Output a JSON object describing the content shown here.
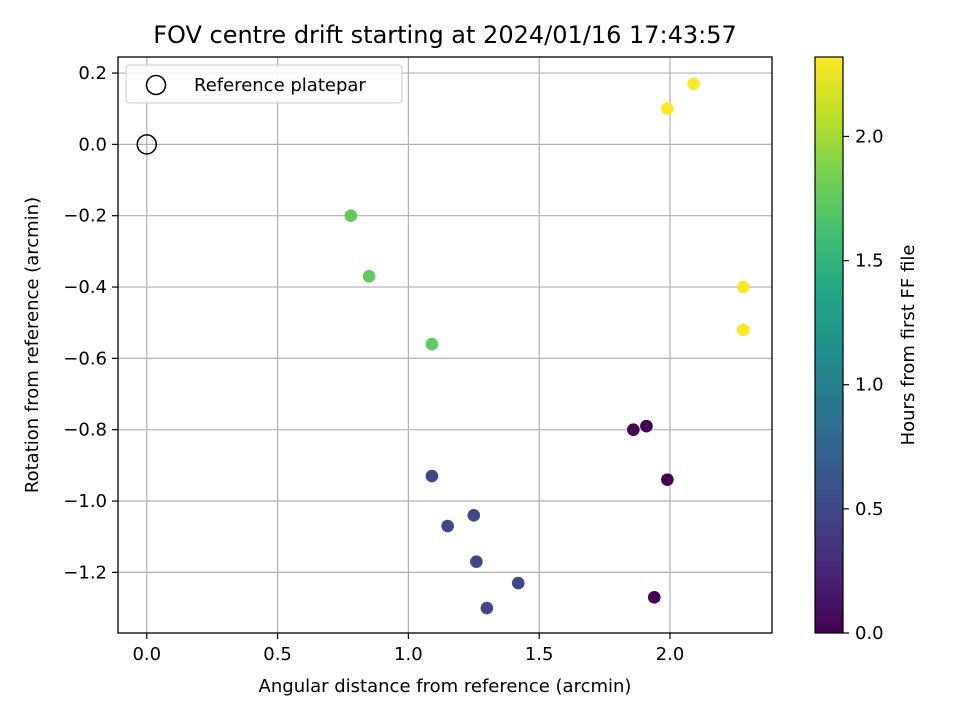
{
  "chart_data": {
    "type": "scatter",
    "title": "FOV centre drift starting at 2024/01/16 17:43:57",
    "xlabel": "Angular distance from reference (arcmin)",
    "ylabel": "Rotation from reference (arcmin)",
    "xlim": [
      -0.11,
      2.39
    ],
    "ylim": [
      -1.37,
      0.245
    ],
    "xticks": [
      0.0,
      0.5,
      1.0,
      1.5,
      2.0
    ],
    "xtick_labels": [
      "0.0",
      "0.5",
      "1.0",
      "1.5",
      "2.0"
    ],
    "yticks": [
      0.2,
      0.0,
      -0.2,
      -0.4,
      -0.6,
      -0.8,
      -1.0,
      -1.2
    ],
    "ytick_labels": [
      "0.2",
      "0.0",
      "−0.2",
      "−0.4",
      "−0.6",
      "−0.8",
      "−1.0",
      "−1.2"
    ],
    "grid": true,
    "legend": {
      "position": "top-left",
      "entries": [
        "Reference platepar"
      ]
    },
    "reference": {
      "x": 0.0,
      "y": 0.0,
      "label": "Reference platepar"
    },
    "colorbar": {
      "label": "Hours from first FF file",
      "range": [
        0.0,
        2.32
      ],
      "ticks": [
        0.0,
        0.5,
        1.0,
        1.5,
        2.0
      ],
      "tick_labels": [
        "0.0",
        "0.5",
        "1.0",
        "1.5",
        "2.0"
      ],
      "colormap": "viridis"
    },
    "points": [
      {
        "x": 1.86,
        "y": -0.8,
        "hours": 0.0
      },
      {
        "x": 1.91,
        "y": -0.79,
        "hours": 0.0
      },
      {
        "x": 1.99,
        "y": -0.94,
        "hours": 0.0
      },
      {
        "x": 1.94,
        "y": -1.27,
        "hours": 0.0
      },
      {
        "x": 1.09,
        "y": -0.93,
        "hours": 0.5
      },
      {
        "x": 1.15,
        "y": -1.07,
        "hours": 0.5
      },
      {
        "x": 1.25,
        "y": -1.04,
        "hours": 0.5
      },
      {
        "x": 1.26,
        "y": -1.17,
        "hours": 0.5
      },
      {
        "x": 1.42,
        "y": -1.23,
        "hours": 0.5
      },
      {
        "x": 1.3,
        "y": -1.3,
        "hours": 0.5
      },
      {
        "x": 0.78,
        "y": -0.2,
        "hours": 1.75
      },
      {
        "x": 0.85,
        "y": -0.37,
        "hours": 1.75
      },
      {
        "x": 1.09,
        "y": -0.56,
        "hours": 1.75
      },
      {
        "x": 1.99,
        "y": 0.1,
        "hours": 2.32
      },
      {
        "x": 2.09,
        "y": 0.17,
        "hours": 2.32
      },
      {
        "x": 2.28,
        "y": -0.4,
        "hours": 2.32
      },
      {
        "x": 2.28,
        "y": -0.52,
        "hours": 2.32
      }
    ]
  }
}
